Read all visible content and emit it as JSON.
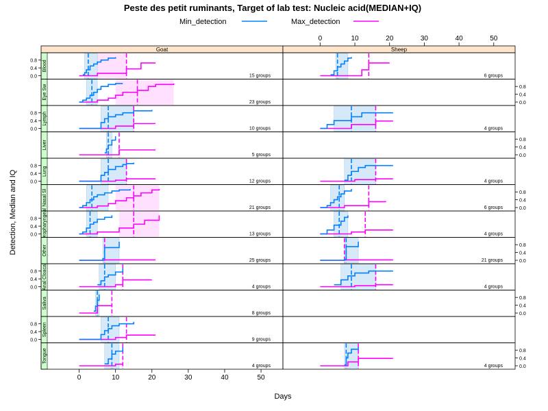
{
  "chart_data": {
    "type": "line",
    "title": "Peste des petit ruminants, Target of lab test: Nucleic acid(MEDIAN+IQ)",
    "xlabel": "Days",
    "ylabel": "Detection, Median and IQ",
    "xlim": [
      -5,
      53
    ],
    "ylim": [
      0,
      1
    ],
    "xticks": [
      0,
      10,
      20,
      30,
      40,
      50
    ],
    "yticks": [
      0.0,
      0.4,
      0.8
    ],
    "species": [
      "Goat",
      "Sheep"
    ],
    "legend": {
      "position": "top",
      "items": [
        {
          "name": "Min_detection",
          "color": "#0080ff"
        },
        {
          "name": "Max_detection",
          "color": "#ff00ff"
        }
      ]
    },
    "colors": {
      "min": "#0080ff",
      "max": "#ff00ff",
      "iq_min": "#cce4f7",
      "iq_max": "#ffd6ff",
      "strip": "#ffe5cc",
      "row_strip": "#ccffcc"
    },
    "panels": [
      {
        "row": "Blood",
        "species": "Goat",
        "groups_label": "15 groups",
        "min": {
          "q1": 1.5,
          "median": 2.5,
          "q3": 5,
          "x": [
            1,
            1.5,
            2,
            3,
            4,
            5,
            6,
            8,
            10
          ],
          "y": [
            0.05,
            0.15,
            0.3,
            0.5,
            0.6,
            0.7,
            0.8,
            0.9,
            0.95
          ]
        },
        "max": {
          "q1": 5,
          "median": 13,
          "q3": 13,
          "x": [
            0,
            5,
            13,
            17,
            21
          ],
          "y": [
            0.0,
            0.12,
            0.35,
            0.65,
            0.65
          ]
        }
      },
      {
        "row": "Blood",
        "species": "Sheep",
        "groups_label": "6 groups",
        "min": {
          "q1": 4.5,
          "median": 5,
          "q3": 8,
          "x": [
            3,
            4,
            5,
            6,
            7,
            8,
            9
          ],
          "y": [
            0.05,
            0.25,
            0.45,
            0.6,
            0.75,
            0.9,
            0.95
          ]
        },
        "max": {
          "q1": 14,
          "median": 14,
          "q3": 14,
          "x": [
            0,
            12,
            14,
            20
          ],
          "y": [
            0.0,
            0.3,
            0.65,
            0.65
          ]
        }
      },
      {
        "row": "Eye Sw",
        "species": "Goat",
        "groups_label": "23 groups",
        "min": {
          "q1": 2,
          "median": 3.5,
          "q3": 5,
          "x": [
            0,
            1,
            2,
            3,
            4,
            5,
            6,
            8,
            10,
            12
          ],
          "y": [
            0.0,
            0.1,
            0.2,
            0.35,
            0.5,
            0.65,
            0.8,
            0.9,
            0.95,
            0.95
          ]
        },
        "max": {
          "q1": 10,
          "median": 16,
          "q3": 26,
          "x": [
            0,
            5,
            8,
            10,
            12,
            16,
            19,
            21,
            26
          ],
          "y": [
            0.0,
            0.1,
            0.2,
            0.35,
            0.5,
            0.6,
            0.8,
            0.9,
            0.95
          ]
        }
      },
      {
        "row": "Lymph",
        "species": "Goat",
        "groups_label": "10 groups",
        "min": {
          "q1": 6,
          "median": 8,
          "q3": 15,
          "x": [
            0,
            6,
            7,
            8,
            10,
            12,
            15,
            20
          ],
          "y": [
            0.0,
            0.3,
            0.5,
            0.6,
            0.7,
            0.8,
            0.9,
            0.95
          ]
        },
        "max": {
          "q1": 15,
          "median": 15,
          "q3": 15,
          "x": [
            0,
            10,
            15,
            21
          ],
          "y": [
            0.0,
            0.12,
            0.25,
            0.25
          ]
        }
      },
      {
        "row": "Lymph",
        "species": "Sheep",
        "groups_label": "4 groups",
        "min": {
          "q1": 4,
          "median": 9,
          "q3": 16,
          "x": [
            0,
            2,
            4,
            9,
            12,
            21
          ],
          "y": [
            0.0,
            0.2,
            0.4,
            0.6,
            0.8,
            0.8
          ]
        },
        "max": {
          "q1": 16,
          "median": 16,
          "q3": 16,
          "x": [
            0,
            9,
            16,
            21
          ],
          "y": [
            0.0,
            0.2,
            0.38,
            0.38
          ]
        }
      },
      {
        "row": "Liver",
        "species": "Goat",
        "groups_label": "5 groups",
        "min": {
          "q1": 7.5,
          "median": 8,
          "q3": 9,
          "x": [
            7,
            7.5,
            8,
            9,
            10
          ],
          "y": [
            0.1,
            0.3,
            0.5,
            0.75,
            0.95
          ]
        },
        "max": {
          "q1": 11,
          "median": 11,
          "q3": 11,
          "x": [
            0,
            11,
            21
          ],
          "y": [
            0.0,
            0.25,
            0.25
          ]
        }
      },
      {
        "row": "Lung",
        "species": "Goat",
        "groups_label": "12 groups",
        "min": {
          "q1": 6,
          "median": 8,
          "q3": 13,
          "x": [
            0,
            6,
            7,
            8,
            10,
            12,
            13,
            15
          ],
          "y": [
            0.0,
            0.3,
            0.45,
            0.6,
            0.75,
            0.85,
            0.9,
            0.95
          ]
        },
        "max": {
          "q1": 13,
          "median": 13,
          "q3": 13,
          "x": [
            0,
            10,
            13,
            21
          ],
          "y": [
            0.0,
            0.05,
            0.12,
            0.12
          ]
        }
      },
      {
        "row": "Lung",
        "species": "Sheep",
        "groups_label": "4 groups",
        "min": {
          "q1": 7,
          "median": 9,
          "q3": 16,
          "x": [
            7,
            8,
            9,
            11,
            13,
            21
          ],
          "y": [
            0.05,
            0.3,
            0.5,
            0.7,
            0.8,
            0.8
          ]
        },
        "max": {
          "q1": 16,
          "median": 16,
          "q3": 16,
          "x": [
            0,
            10,
            16,
            21
          ],
          "y": [
            0.0,
            0.08,
            0.12,
            0.12
          ]
        }
      },
      {
        "row": "Nasal Sl",
        "species": "Goat",
        "groups_label": "21 groups",
        "min": {
          "q1": 2,
          "median": 3.5,
          "q3": 8,
          "x": [
            0,
            1,
            2,
            3,
            4,
            5,
            7,
            9,
            11,
            14
          ],
          "y": [
            0.0,
            0.1,
            0.25,
            0.4,
            0.55,
            0.65,
            0.75,
            0.85,
            0.9,
            0.95
          ]
        },
        "max": {
          "q1": 10,
          "median": 15,
          "q3": 22,
          "x": [
            0,
            5,
            8,
            10,
            13,
            15,
            17,
            20,
            22
          ],
          "y": [
            0.0,
            0.08,
            0.2,
            0.35,
            0.5,
            0.6,
            0.75,
            0.9,
            0.95
          ]
        }
      },
      {
        "row": "Nasal Sl",
        "species": "Sheep",
        "groups_label": "6 groups",
        "min": {
          "q1": 3,
          "median": 5.5,
          "q3": 7,
          "x": [
            0,
            2,
            3,
            4,
            5,
            6,
            7,
            9
          ],
          "y": [
            0.0,
            0.1,
            0.25,
            0.4,
            0.55,
            0.7,
            0.85,
            0.95
          ]
        },
        "max": {
          "q1": 14,
          "median": 14,
          "q3": 14,
          "x": [
            0,
            7,
            14,
            19
          ],
          "y": [
            0.0,
            0.1,
            0.3,
            0.3
          ]
        }
      },
      {
        "row": "Oropharyngeal",
        "species": "Goat",
        "groups_label": "13 groups",
        "min": {
          "q1": 2,
          "median": 3,
          "q3": 5,
          "x": [
            0,
            1,
            2,
            3,
            4,
            5,
            7,
            9
          ],
          "y": [
            0.0,
            0.1,
            0.3,
            0.5,
            0.6,
            0.75,
            0.85,
            0.95
          ]
        },
        "max": {
          "q1": 11,
          "median": 15,
          "q3": 22,
          "x": [
            0,
            5,
            11,
            15,
            18,
            22
          ],
          "y": [
            0.0,
            0.1,
            0.3,
            0.5,
            0.7,
            0.95
          ]
        }
      },
      {
        "row": "Oropharyngeal",
        "species": "Sheep",
        "groups_label": "4 groups",
        "min": {
          "q1": 4,
          "median": 5.5,
          "q3": 8,
          "x": [
            0,
            2,
            4,
            6,
            7,
            8
          ],
          "y": [
            0.0,
            0.2,
            0.45,
            0.65,
            0.85,
            0.95
          ]
        },
        "max": {
          "q1": 13,
          "median": 13,
          "q3": 13,
          "x": [
            0,
            9,
            13,
            21
          ],
          "y": [
            0.0,
            0.1,
            0.2,
            0.2
          ]
        }
      },
      {
        "row": "Other",
        "species": "Goat",
        "groups_label": "25 groups",
        "min": {
          "q1": 6.5,
          "median": 7,
          "q3": 11,
          "x": [
            0,
            6.5,
            7,
            11
          ],
          "y": [
            0.0,
            0.08,
            0.65,
            0.95
          ]
        },
        "max": {
          "q1": 7,
          "median": 7,
          "q3": 7,
          "x": [
            0,
            7,
            21
          ],
          "y": [
            0.0,
            0.02,
            0.02
          ]
        }
      },
      {
        "row": "Other",
        "species": "Sheep",
        "groups_label": "21 groups",
        "min": {
          "q1": 7,
          "median": 7.5,
          "q3": 11,
          "x": [
            0,
            7,
            7.5,
            11
          ],
          "y": [
            0.0,
            0.05,
            0.7,
            0.95
          ]
        },
        "max": {
          "q1": 7,
          "median": 7,
          "q3": 7,
          "x": [
            0,
            7,
            21
          ],
          "y": [
            0.0,
            0.02,
            0.02
          ]
        }
      },
      {
        "row": "Anal Cloacal",
        "species": "Goat",
        "groups_label": "4 groups",
        "min": {
          "q1": 5.5,
          "median": 7,
          "q3": 10,
          "x": [
            5,
            6,
            7,
            8,
            10,
            12
          ],
          "y": [
            0.1,
            0.3,
            0.5,
            0.6,
            0.75,
            0.95
          ]
        },
        "max": {
          "q1": 12,
          "median": 12,
          "q3": 12,
          "x": [
            0,
            10,
            12,
            20
          ],
          "y": [
            0.0,
            0.1,
            0.35,
            0.35
          ]
        }
      },
      {
        "row": "Anal Cloacal",
        "species": "Sheep",
        "groups_label": "4 groups",
        "min": {
          "q1": 6,
          "median": 9,
          "q3": 16,
          "x": [
            4,
            6,
            8,
            10,
            14,
            21
          ],
          "y": [
            0.1,
            0.35,
            0.55,
            0.7,
            0.8,
            0.8
          ]
        },
        "max": {
          "q1": 16,
          "median": 16,
          "q3": 16,
          "x": [
            0,
            10,
            16,
            21
          ],
          "y": [
            0.0,
            0.05,
            0.1,
            0.1
          ]
        }
      },
      {
        "row": "Saliva",
        "species": "Goat",
        "groups_label": "8 groups",
        "min": {
          "q1": 4.5,
          "median": 5,
          "q3": 5.5,
          "x": [
            4,
            4.5,
            5,
            5.5
          ],
          "y": [
            0.1,
            0.35,
            0.65,
            0.95
          ]
        },
        "max": {
          "q1": 9,
          "median": 9,
          "q3": 9,
          "x": [
            0,
            5,
            9
          ],
          "y": [
            0.0,
            0.38,
            0.38
          ]
        }
      },
      {
        "row": "Spleen",
        "species": "Goat",
        "groups_label": "9 groups",
        "min": {
          "q1": 6,
          "median": 8,
          "q3": 11,
          "x": [
            0,
            6,
            7,
            8,
            9,
            11,
            15
          ],
          "y": [
            0.0,
            0.25,
            0.45,
            0.55,
            0.7,
            0.8,
            0.9
          ]
        },
        "max": {
          "q1": 13,
          "median": 13,
          "q3": 13,
          "x": [
            0,
            10,
            13,
            21
          ],
          "y": [
            0.0,
            0.1,
            0.22,
            0.22
          ]
        }
      },
      {
        "row": "Tongue",
        "species": "Goat",
        "groups_label": "4 groups",
        "min": {
          "q1": 7,
          "median": 9,
          "q3": 11,
          "x": [
            7,
            8,
            9,
            10,
            12
          ],
          "y": [
            0.1,
            0.35,
            0.6,
            0.75,
            0.95
          ]
        },
        "max": {
          "q1": 12,
          "median": 12,
          "q3": 12,
          "x": [
            0,
            10,
            12
          ],
          "y": [
            0.0,
            0.08,
            0.08
          ]
        }
      },
      {
        "row": "Tongue",
        "species": "Sheep",
        "groups_label": "4 groups",
        "min": {
          "q1": 7,
          "median": 7.5,
          "q3": 11,
          "x": [
            7,
            7.5,
            8,
            9,
            11
          ],
          "y": [
            0.05,
            0.4,
            0.65,
            0.85,
            0.95
          ]
        },
        "max": {
          "q1": 11,
          "median": 11,
          "q3": 11,
          "x": [
            0,
            8,
            11,
            21
          ],
          "y": [
            0.0,
            0.2,
            0.38,
            0.38
          ]
        }
      }
    ]
  }
}
